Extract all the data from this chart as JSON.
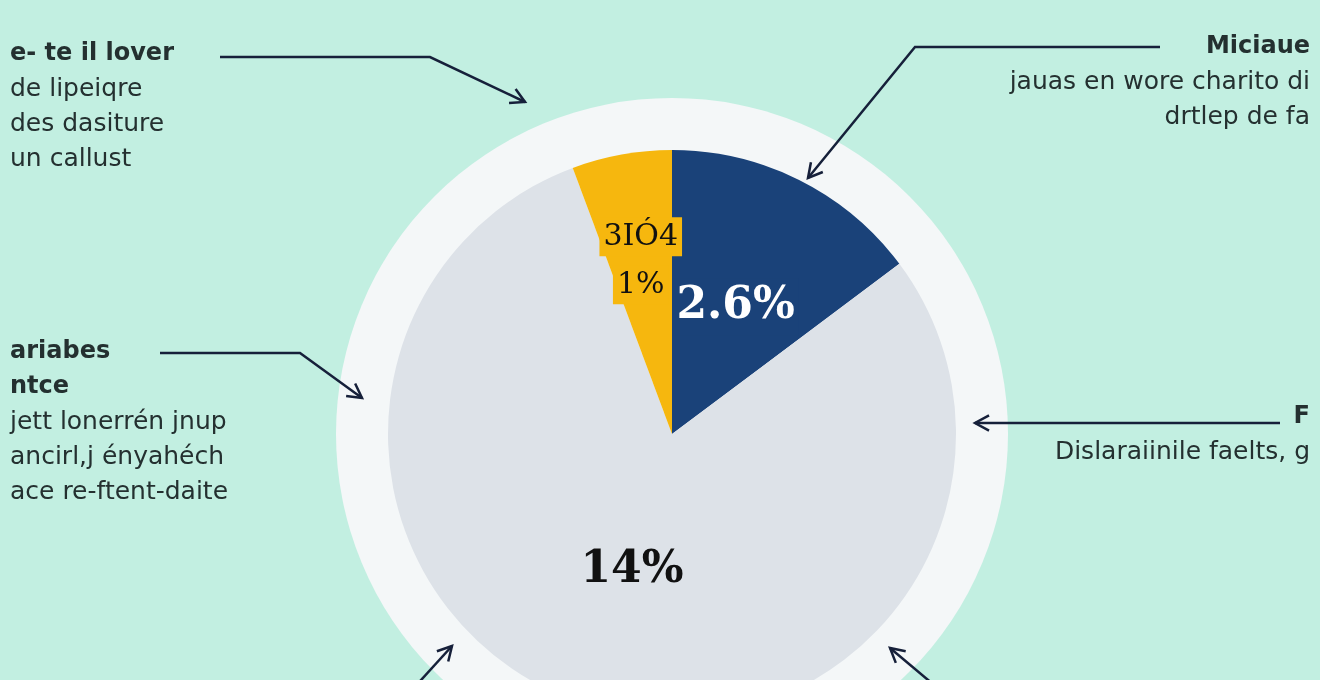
{
  "chart_data": {
    "type": "pie",
    "categories": [
      null,
      null,
      null
    ],
    "values": [
      2.6,
      14,
      1
    ],
    "colors": [
      "#1a4279",
      "#dde2e8",
      "#f6b70e"
    ],
    "value_labels": [
      "2.6%",
      "14%",
      "3IÓ4\n1%"
    ],
    "annotations": [
      "e- te il lover\nde lipeiqre\ndes dasiture\nun callust",
      "Miciaue\njauas en wore charito di\ndrtlep de fa",
      "ariabes\nntce\njett lonerrén jnup\nancirl,j ényahéch\nace re-ftent-daite",
      "F\nDislaraiinile faelts, g"
    ]
  }
}
